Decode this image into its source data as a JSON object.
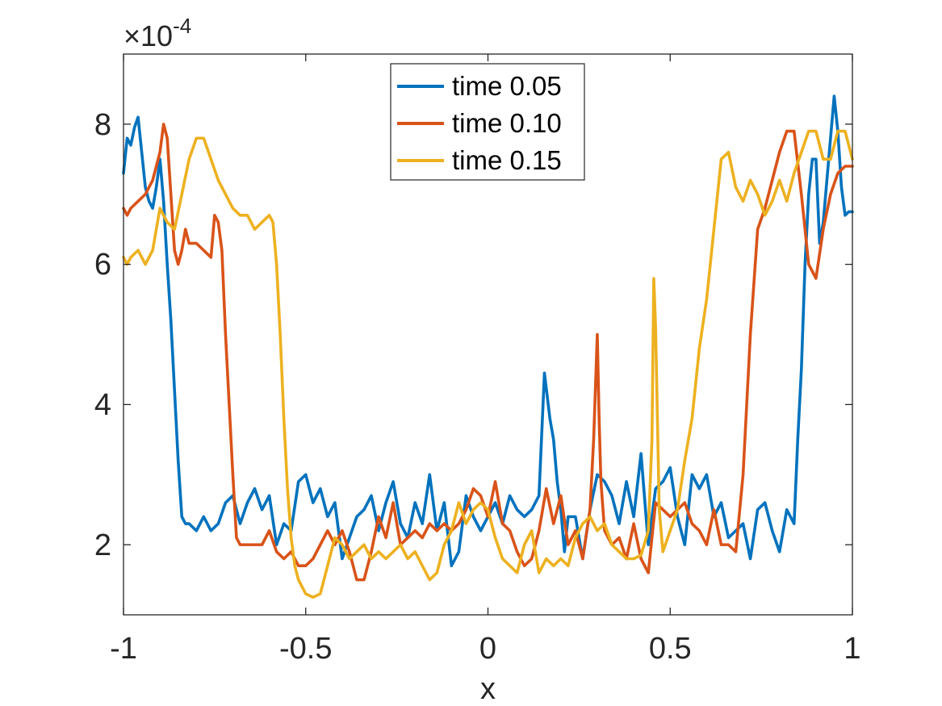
{
  "chart_data": {
    "type": "line",
    "title": "",
    "xlabel": "x",
    "ylabel": "",
    "xlim": [
      -1,
      1
    ],
    "ylim": [
      1,
      9
    ],
    "x_ticks": [
      -1,
      -0.5,
      0,
      0.5,
      1
    ],
    "x_tick_labels": [
      "-1",
      "-0.5",
      "0",
      "0.5",
      "1"
    ],
    "y_ticks": [
      2,
      4,
      6,
      8
    ],
    "y_tick_labels": [
      "2",
      "4",
      "6",
      "8"
    ],
    "y_exponent_prefix": "×10",
    "y_exponent": "-4",
    "grid": false,
    "legend_position": "top-center",
    "series": [
      {
        "name": "time 0.05",
        "color": "#0072BD",
        "x": [
          -1.0,
          -0.99,
          -0.98,
          -0.97,
          -0.96,
          -0.95,
          -0.94,
          -0.93,
          -0.92,
          -0.91,
          -0.9,
          -0.89,
          -0.88,
          -0.87,
          -0.86,
          -0.85,
          -0.84,
          -0.83,
          -0.82,
          -0.8,
          -0.78,
          -0.76,
          -0.74,
          -0.72,
          -0.7,
          -0.68,
          -0.66,
          -0.64,
          -0.62,
          -0.6,
          -0.58,
          -0.56,
          -0.54,
          -0.52,
          -0.5,
          -0.48,
          -0.46,
          -0.44,
          -0.42,
          -0.4,
          -0.38,
          -0.36,
          -0.34,
          -0.32,
          -0.3,
          -0.28,
          -0.26,
          -0.24,
          -0.22,
          -0.2,
          -0.18,
          -0.16,
          -0.14,
          -0.12,
          -0.1,
          -0.08,
          -0.06,
          -0.04,
          -0.02,
          0.0,
          0.02,
          0.04,
          0.06,
          0.08,
          0.1,
          0.12,
          0.14,
          0.155,
          0.17,
          0.18,
          0.19,
          0.2,
          0.21,
          0.22,
          0.24,
          0.26,
          0.28,
          0.3,
          0.32,
          0.34,
          0.36,
          0.38,
          0.4,
          0.42,
          0.44,
          0.46,
          0.48,
          0.5,
          0.52,
          0.54,
          0.56,
          0.58,
          0.6,
          0.62,
          0.64,
          0.66,
          0.68,
          0.7,
          0.72,
          0.74,
          0.76,
          0.78,
          0.8,
          0.82,
          0.84,
          0.85,
          0.86,
          0.87,
          0.88,
          0.89,
          0.9,
          0.91,
          0.92,
          0.93,
          0.94,
          0.95,
          0.96,
          0.97,
          0.98,
          0.99,
          1.0
        ],
        "values": [
          7.3,
          7.8,
          7.7,
          7.95,
          8.1,
          7.6,
          7.1,
          6.9,
          6.8,
          7.1,
          7.5,
          6.9,
          6.0,
          5.2,
          4.2,
          3.2,
          2.4,
          2.3,
          2.3,
          2.2,
          2.4,
          2.2,
          2.3,
          2.6,
          2.7,
          2.3,
          2.6,
          2.8,
          2.5,
          2.7,
          2.0,
          2.3,
          2.2,
          2.9,
          3.0,
          2.6,
          2.8,
          2.4,
          2.6,
          1.8,
          2.1,
          2.4,
          2.5,
          2.7,
          2.2,
          2.6,
          2.9,
          2.3,
          2.1,
          2.6,
          2.3,
          3.0,
          2.2,
          2.6,
          1.7,
          1.9,
          2.7,
          2.4,
          2.2,
          2.4,
          2.6,
          2.3,
          2.7,
          2.5,
          2.4,
          2.5,
          2.7,
          4.45,
          3.8,
          3.5,
          2.9,
          2.5,
          1.9,
          2.4,
          2.4,
          1.8,
          2.5,
          3.0,
          2.9,
          2.7,
          2.3,
          2.9,
          2.4,
          3.3,
          2.0,
          2.8,
          2.9,
          3.1,
          2.4,
          2.0,
          3.0,
          2.8,
          3.0,
          2.4,
          2.6,
          2.1,
          2.2,
          2.3,
          1.8,
          2.5,
          2.6,
          2.2,
          1.9,
          2.5,
          2.3,
          3.5,
          4.5,
          6.0,
          7.0,
          7.5,
          7.5,
          6.3,
          6.6,
          7.2,
          7.8,
          8.4,
          7.9,
          7.1,
          6.7,
          6.75,
          6.75
        ]
      },
      {
        "name": "time 0.10",
        "color": "#D95319",
        "x": [
          -1.0,
          -0.99,
          -0.98,
          -0.96,
          -0.94,
          -0.92,
          -0.9,
          -0.89,
          -0.88,
          -0.87,
          -0.86,
          -0.85,
          -0.84,
          -0.83,
          -0.82,
          -0.8,
          -0.78,
          -0.76,
          -0.75,
          -0.74,
          -0.73,
          -0.72,
          -0.71,
          -0.7,
          -0.69,
          -0.68,
          -0.67,
          -0.66,
          -0.64,
          -0.62,
          -0.6,
          -0.58,
          -0.56,
          -0.54,
          -0.52,
          -0.5,
          -0.48,
          -0.46,
          -0.44,
          -0.42,
          -0.4,
          -0.38,
          -0.36,
          -0.34,
          -0.32,
          -0.3,
          -0.28,
          -0.26,
          -0.24,
          -0.22,
          -0.2,
          -0.18,
          -0.16,
          -0.14,
          -0.12,
          -0.1,
          -0.08,
          -0.06,
          -0.04,
          -0.02,
          0.0,
          0.02,
          0.04,
          0.06,
          0.08,
          0.1,
          0.12,
          0.14,
          0.16,
          0.18,
          0.2,
          0.22,
          0.24,
          0.26,
          0.28,
          0.29,
          0.3,
          0.305,
          0.31,
          0.32,
          0.34,
          0.36,
          0.38,
          0.4,
          0.42,
          0.44,
          0.46,
          0.48,
          0.5,
          0.52,
          0.54,
          0.56,
          0.58,
          0.6,
          0.62,
          0.64,
          0.66,
          0.68,
          0.7,
          0.72,
          0.74,
          0.76,
          0.78,
          0.8,
          0.82,
          0.84,
          0.86,
          0.88,
          0.9,
          0.92,
          0.94,
          0.96,
          0.98,
          1.0
        ],
        "values": [
          6.8,
          6.7,
          6.8,
          6.9,
          7.0,
          7.2,
          7.6,
          8.0,
          7.8,
          7.0,
          6.2,
          6.0,
          6.2,
          6.5,
          6.3,
          6.3,
          6.2,
          6.1,
          6.7,
          6.6,
          6.2,
          5.0,
          4.0,
          3.0,
          2.1,
          2.0,
          2.0,
          2.0,
          2.0,
          2.0,
          2.2,
          1.9,
          1.8,
          1.9,
          1.7,
          1.7,
          1.8,
          2.0,
          2.2,
          2.0,
          2.2,
          1.9,
          1.5,
          1.5,
          1.9,
          2.4,
          2.1,
          2.6,
          2.0,
          2.1,
          2.2,
          2.1,
          2.3,
          2.2,
          2.3,
          2.2,
          2.3,
          2.5,
          2.8,
          2.7,
          2.4,
          2.9,
          2.3,
          2.2,
          1.9,
          1.7,
          1.8,
          2.2,
          2.8,
          2.3,
          2.7,
          2.0,
          2.2,
          1.8,
          2.5,
          3.5,
          5.0,
          3.8,
          2.9,
          2.2,
          2.0,
          2.1,
          1.8,
          2.3,
          1.8,
          1.6,
          2.6,
          2.5,
          2.4,
          2.5,
          2.6,
          2.3,
          2.2,
          2.0,
          2.5,
          2.0,
          2.0,
          1.9,
          3.0,
          5.0,
          6.5,
          6.8,
          7.2,
          7.6,
          7.9,
          7.9,
          7.0,
          6.0,
          5.8,
          6.5,
          7.0,
          7.3,
          7.4,
          7.4
        ]
      },
      {
        "name": "time 0.15",
        "color": "#EDB120",
        "x": [
          -1.0,
          -0.99,
          -0.98,
          -0.96,
          -0.94,
          -0.92,
          -0.9,
          -0.88,
          -0.86,
          -0.84,
          -0.82,
          -0.8,
          -0.78,
          -0.76,
          -0.74,
          -0.72,
          -0.7,
          -0.68,
          -0.66,
          -0.64,
          -0.62,
          -0.6,
          -0.59,
          -0.58,
          -0.57,
          -0.56,
          -0.55,
          -0.54,
          -0.53,
          -0.52,
          -0.5,
          -0.48,
          -0.46,
          -0.44,
          -0.42,
          -0.4,
          -0.38,
          -0.36,
          -0.34,
          -0.32,
          -0.3,
          -0.28,
          -0.26,
          -0.24,
          -0.22,
          -0.2,
          -0.18,
          -0.16,
          -0.14,
          -0.12,
          -0.1,
          -0.08,
          -0.06,
          -0.04,
          -0.02,
          0.0,
          0.02,
          0.04,
          0.06,
          0.08,
          0.1,
          0.12,
          0.14,
          0.16,
          0.18,
          0.2,
          0.22,
          0.24,
          0.26,
          0.28,
          0.3,
          0.32,
          0.34,
          0.36,
          0.38,
          0.4,
          0.42,
          0.44,
          0.45,
          0.455,
          0.46,
          0.47,
          0.48,
          0.5,
          0.52,
          0.54,
          0.56,
          0.58,
          0.6,
          0.62,
          0.64,
          0.66,
          0.68,
          0.7,
          0.72,
          0.74,
          0.76,
          0.78,
          0.8,
          0.82,
          0.84,
          0.86,
          0.88,
          0.9,
          0.92,
          0.94,
          0.96,
          0.98,
          1.0
        ],
        "values": [
          6.1,
          6.0,
          6.1,
          6.2,
          6.0,
          6.2,
          6.8,
          6.6,
          6.5,
          7.0,
          7.5,
          7.8,
          7.8,
          7.5,
          7.2,
          7.0,
          6.8,
          6.7,
          6.7,
          6.5,
          6.6,
          6.7,
          6.6,
          6.0,
          5.0,
          3.8,
          2.8,
          2.1,
          1.7,
          1.5,
          1.3,
          1.25,
          1.3,
          1.7,
          2.1,
          2.0,
          1.8,
          1.9,
          2.0,
          1.8,
          1.9,
          1.8,
          1.9,
          2.0,
          1.8,
          1.9,
          1.7,
          1.5,
          1.6,
          2.0,
          2.2,
          2.6,
          2.3,
          2.5,
          2.6,
          2.5,
          2.1,
          1.8,
          1.7,
          1.6,
          2.0,
          2.2,
          1.6,
          1.8,
          1.7,
          1.8,
          1.7,
          2.1,
          2.3,
          2.4,
          2.2,
          2.3,
          2.0,
          1.9,
          1.8,
          1.8,
          1.85,
          2.2,
          3.5,
          5.8,
          5.1,
          2.5,
          1.9,
          2.2,
          2.5,
          3.2,
          3.8,
          4.8,
          5.5,
          6.5,
          7.5,
          7.6,
          7.1,
          6.9,
          7.2,
          7.0,
          6.7,
          6.9,
          7.2,
          6.9,
          7.3,
          7.6,
          7.9,
          7.9,
          7.5,
          7.5,
          7.9,
          7.9,
          7.5
        ]
      }
    ]
  }
}
